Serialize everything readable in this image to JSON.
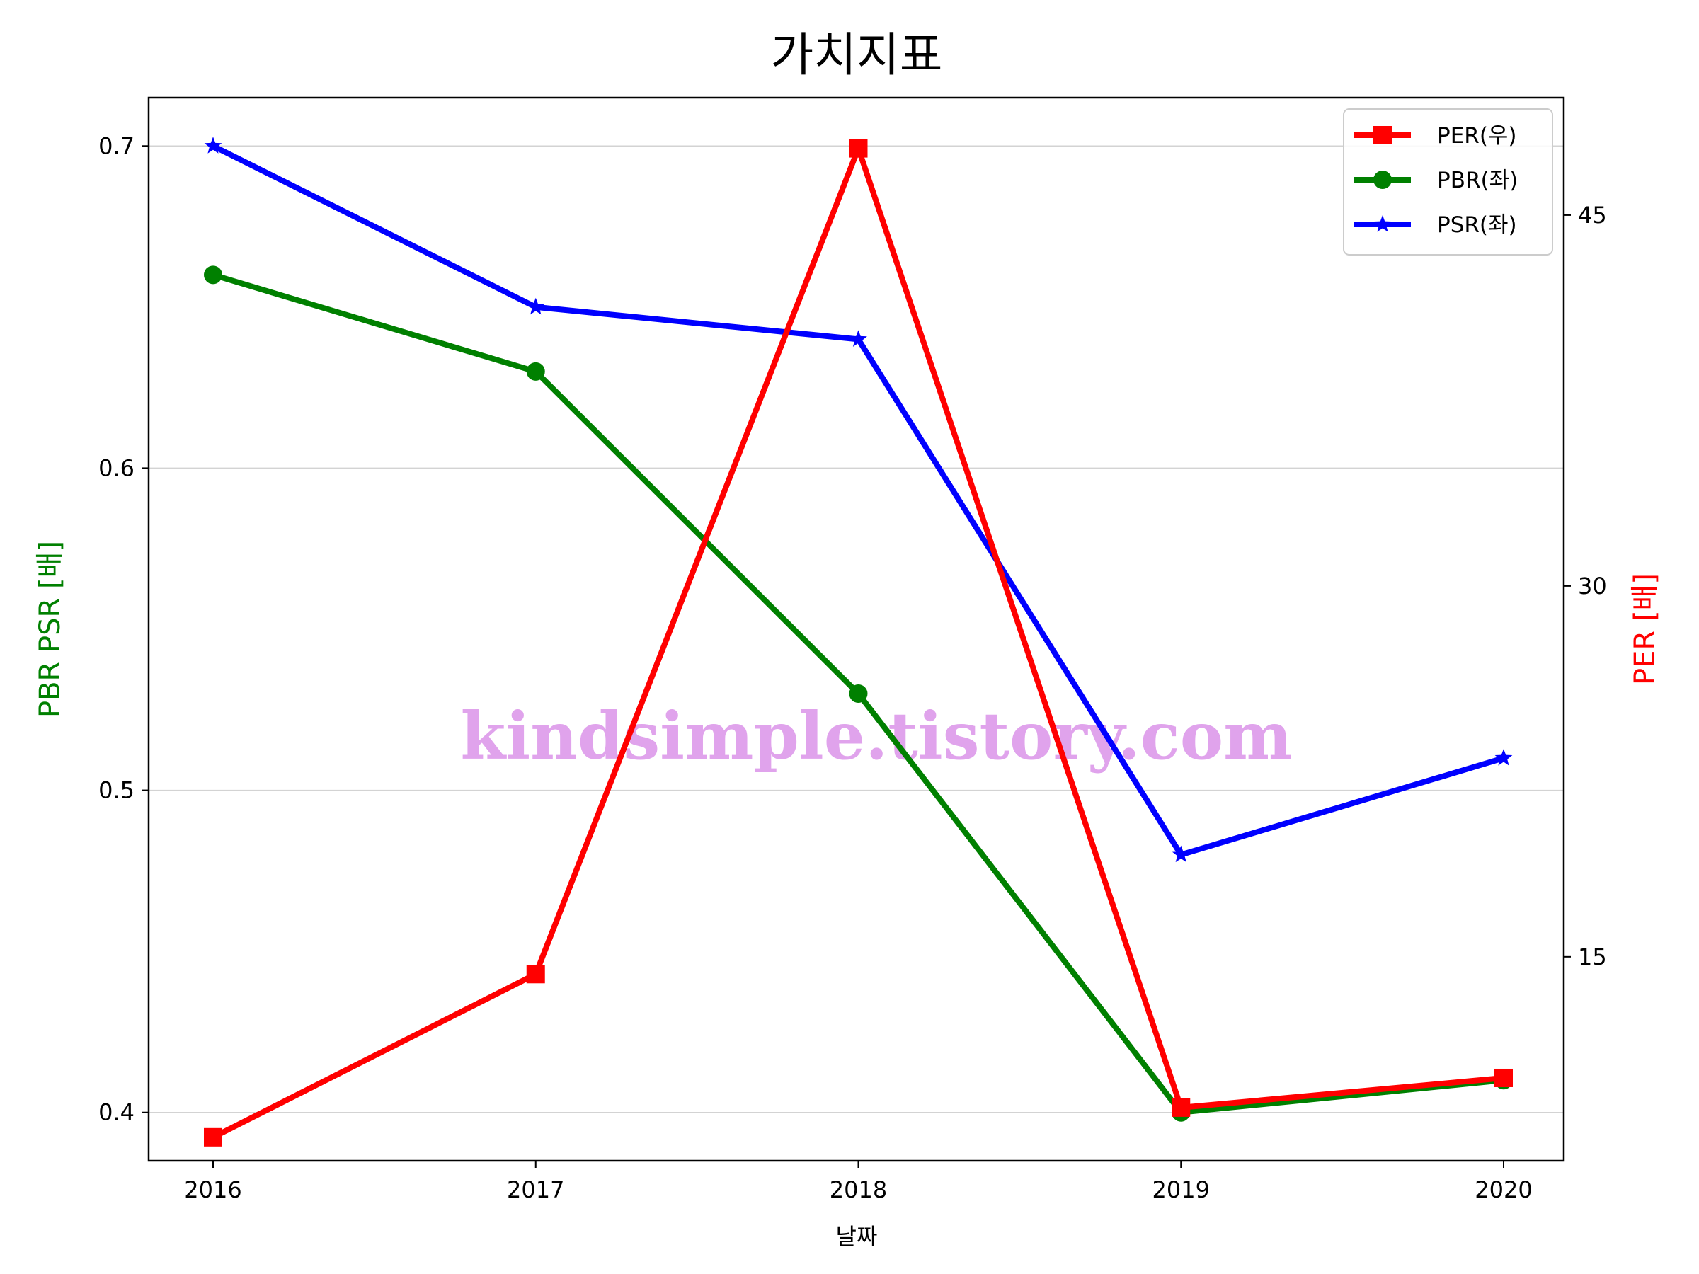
{
  "chart_data": {
    "type": "line",
    "title": "가치지표",
    "xlabel": "날짜",
    "ylabel_left": "PBR PSR [배]",
    "ylabel_right": "PER [배]",
    "categories": [
      "2016",
      "2017",
      "2018",
      "2019",
      "2020"
    ],
    "left_ylim": [
      0.385,
      0.715
    ],
    "left_ticks": [
      "0.4",
      "0.5",
      "0.6",
      "0.7"
    ],
    "right_ylim": [
      6.75,
      49.75
    ],
    "right_ticks": [
      "15",
      "30",
      "45"
    ],
    "grid": "horizontal (left axis)",
    "legend_position": "top-right",
    "series": [
      {
        "name": "PER(우)",
        "axis": "right",
        "color": "#ff0000",
        "marker": "square",
        "values": [
          7.7,
          14.3,
          47.7,
          8.9,
          10.1
        ]
      },
      {
        "name": "PBR(좌)",
        "axis": "left",
        "color": "#008000",
        "marker": "circle",
        "values": [
          0.66,
          0.63,
          0.53,
          0.4,
          0.41
        ]
      },
      {
        "name": "PSR(좌)",
        "axis": "left",
        "color": "#0000ff",
        "marker": "star",
        "values": [
          0.7,
          0.65,
          0.64,
          0.48,
          0.51
        ]
      }
    ],
    "colors": {
      "ylabel_left": "#008000",
      "ylabel_right": "#ff0000",
      "watermark": "#e0a3ec",
      "grid": "#d3d3d3"
    },
    "watermark": "kindsimple.tistory.com"
  }
}
